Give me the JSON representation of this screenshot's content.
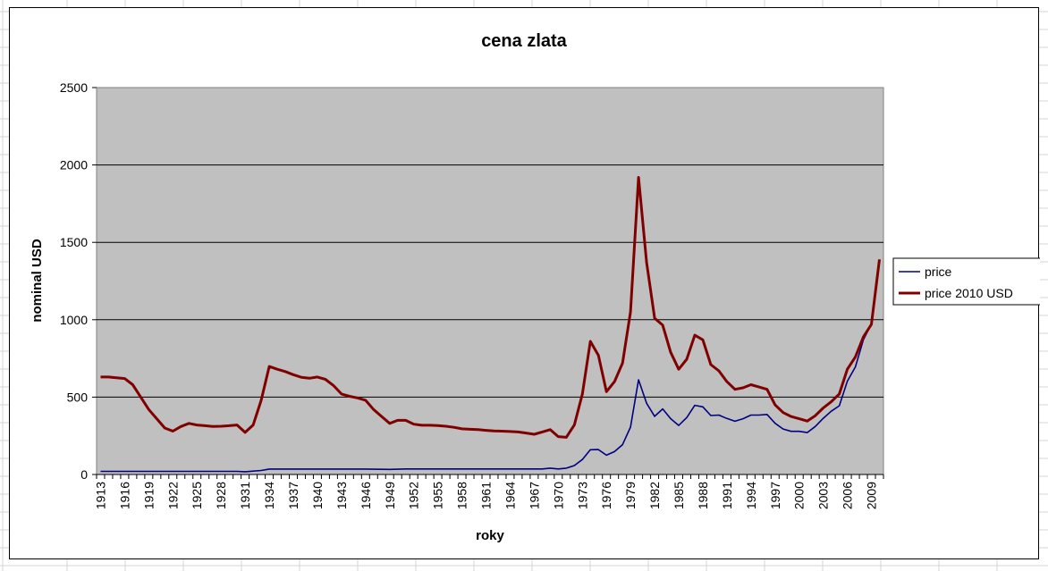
{
  "chart_data": {
    "type": "line",
    "title": "cena zlata",
    "xlabel": "roky",
    "ylabel": "nominal USD",
    "ylim": [
      0,
      2500
    ],
    "yticks": [
      0,
      500,
      1000,
      1500,
      2000,
      2500
    ],
    "xlim": [
      1913,
      2010
    ],
    "xticks": [
      1913,
      1916,
      1919,
      1922,
      1925,
      1928,
      1931,
      1934,
      1937,
      1940,
      1943,
      1946,
      1949,
      1952,
      1955,
      1958,
      1961,
      1964,
      1967,
      1970,
      1973,
      1976,
      1979,
      1982,
      1985,
      1988,
      1991,
      1994,
      1997,
      2000,
      2003,
      2006,
      2009
    ],
    "grid": "horizontal",
    "legend_position": "right",
    "plot_background": "#c0c0c0",
    "series": [
      {
        "name": "price",
        "color": "#000080",
        "points": [
          [
            1913,
            20
          ],
          [
            1930,
            20
          ],
          [
            1931,
            18
          ],
          [
            1933,
            26
          ],
          [
            1934,
            35
          ],
          [
            1946,
            35
          ],
          [
            1949,
            33
          ],
          [
            1951,
            36
          ],
          [
            1968,
            36
          ],
          [
            1969,
            41
          ],
          [
            1970,
            36
          ],
          [
            1971,
            41
          ],
          [
            1972,
            58
          ],
          [
            1973,
            97
          ],
          [
            1974,
            160
          ],
          [
            1975,
            161
          ],
          [
            1976,
            125
          ],
          [
            1977,
            148
          ],
          [
            1978,
            193
          ],
          [
            1979,
            306
          ],
          [
            1980,
            612
          ],
          [
            1981,
            460
          ],
          [
            1982,
            376
          ],
          [
            1983,
            424
          ],
          [
            1984,
            361
          ],
          [
            1985,
            317
          ],
          [
            1986,
            368
          ],
          [
            1987,
            447
          ],
          [
            1988,
            437
          ],
          [
            1989,
            381
          ],
          [
            1990,
            384
          ],
          [
            1991,
            362
          ],
          [
            1992,
            344
          ],
          [
            1993,
            360
          ],
          [
            1994,
            384
          ],
          [
            1995,
            384
          ],
          [
            1996,
            388
          ],
          [
            1997,
            331
          ],
          [
            1998,
            294
          ],
          [
            1999,
            279
          ],
          [
            2000,
            279
          ],
          [
            2001,
            271
          ],
          [
            2002,
            310
          ],
          [
            2003,
            363
          ],
          [
            2004,
            409
          ],
          [
            2005,
            444
          ],
          [
            2006,
            603
          ],
          [
            2007,
            695
          ],
          [
            2008,
            872
          ],
          [
            2009,
            972
          ]
        ]
      },
      {
        "name": "price 2010 USD",
        "color": "#800000",
        "points": [
          [
            1913,
            630
          ],
          [
            1914,
            630
          ],
          [
            1915,
            625
          ],
          [
            1916,
            620
          ],
          [
            1917,
            580
          ],
          [
            1918,
            500
          ],
          [
            1919,
            420
          ],
          [
            1920,
            360
          ],
          [
            1921,
            300
          ],
          [
            1922,
            280
          ],
          [
            1923,
            310
          ],
          [
            1924,
            330
          ],
          [
            1925,
            320
          ],
          [
            1926,
            315
          ],
          [
            1927,
            310
          ],
          [
            1928,
            312
          ],
          [
            1929,
            315
          ],
          [
            1930,
            320
          ],
          [
            1931,
            272
          ],
          [
            1932,
            320
          ],
          [
            1933,
            480
          ],
          [
            1934,
            698
          ],
          [
            1935,
            680
          ],
          [
            1936,
            665
          ],
          [
            1937,
            645
          ],
          [
            1938,
            628
          ],
          [
            1939,
            622
          ],
          [
            1940,
            630
          ],
          [
            1941,
            615
          ],
          [
            1942,
            575
          ],
          [
            1943,
            520
          ],
          [
            1944,
            505
          ],
          [
            1945,
            495
          ],
          [
            1946,
            480
          ],
          [
            1947,
            420
          ],
          [
            1948,
            375
          ],
          [
            1949,
            330
          ],
          [
            1950,
            350
          ],
          [
            1951,
            350
          ],
          [
            1952,
            325
          ],
          [
            1953,
            318
          ],
          [
            1954,
            318
          ],
          [
            1955,
            316
          ],
          [
            1956,
            312
          ],
          [
            1957,
            305
          ],
          [
            1958,
            295
          ],
          [
            1959,
            292
          ],
          [
            1960,
            290
          ],
          [
            1961,
            285
          ],
          [
            1962,
            282
          ],
          [
            1963,
            280
          ],
          [
            1964,
            278
          ],
          [
            1965,
            275
          ],
          [
            1966,
            268
          ],
          [
            1967,
            260
          ],
          [
            1968,
            275
          ],
          [
            1969,
            290
          ],
          [
            1970,
            245
          ],
          [
            1971,
            240
          ],
          [
            1972,
            320
          ],
          [
            1973,
            520
          ],
          [
            1974,
            860
          ],
          [
            1975,
            770
          ],
          [
            1976,
            535
          ],
          [
            1977,
            600
          ],
          [
            1978,
            720
          ],
          [
            1979,
            1050
          ],
          [
            1980,
            1920
          ],
          [
            1981,
            1370
          ],
          [
            1982,
            1010
          ],
          [
            1983,
            965
          ],
          [
            1984,
            790
          ],
          [
            1985,
            680
          ],
          [
            1986,
            745
          ],
          [
            1987,
            900
          ],
          [
            1988,
            870
          ],
          [
            1989,
            710
          ],
          [
            1990,
            670
          ],
          [
            1991,
            600
          ],
          [
            1992,
            550
          ],
          [
            1993,
            560
          ],
          [
            1994,
            580
          ],
          [
            1995,
            565
          ],
          [
            1996,
            550
          ],
          [
            1997,
            450
          ],
          [
            1998,
            400
          ],
          [
            1999,
            375
          ],
          [
            2000,
            360
          ],
          [
            2001,
            345
          ],
          [
            2002,
            380
          ],
          [
            2003,
            430
          ],
          [
            2004,
            470
          ],
          [
            2005,
            520
          ],
          [
            2006,
            680
          ],
          [
            2007,
            760
          ],
          [
            2008,
            890
          ],
          [
            2009,
            970
          ],
          [
            2010,
            1390
          ]
        ]
      }
    ]
  }
}
